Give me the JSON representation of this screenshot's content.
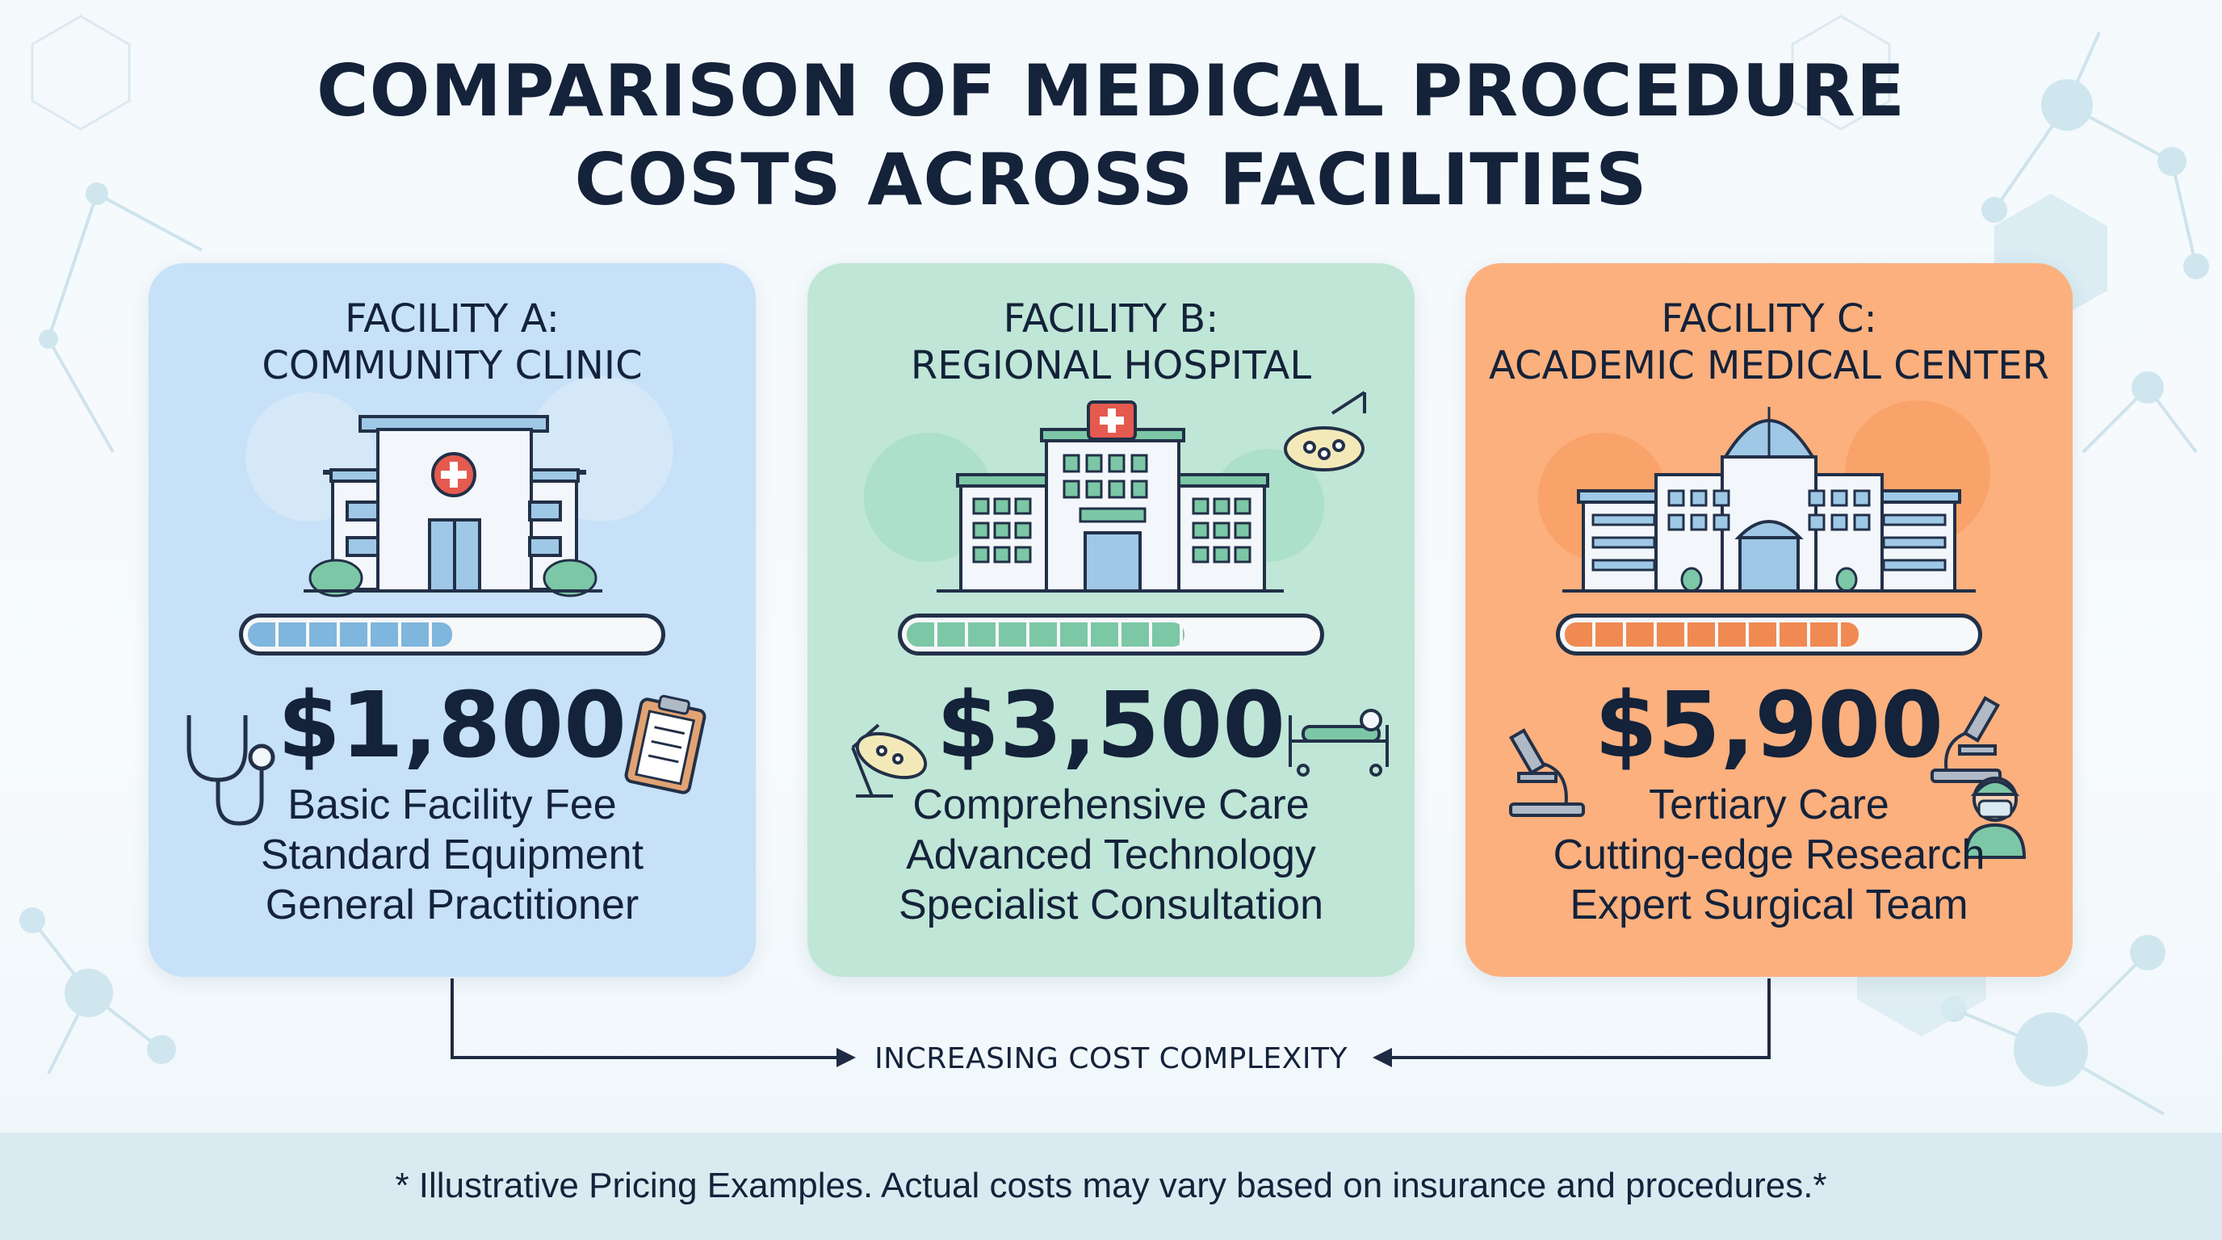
{
  "title": {
    "line1": "COMPARISON OF MEDICAL PROCEDURE",
    "line2": "COSTS ACROSS FACILITIES"
  },
  "facilities": [
    {
      "heading_line1": "FACILITY A:",
      "heading_line2": "COMMUNITY CLINIC",
      "cost_level": 0.5,
      "price": "$1,800",
      "features": [
        "Basic Facility Fee",
        "Standard Equipment",
        "General Practitioner"
      ],
      "color": "#c6e1f8",
      "accent": "#7fb6dd",
      "icons": [
        "clinic-building-icon",
        "stethoscope-icon",
        "clipboard-icon"
      ]
    },
    {
      "heading_line1": "FACILITY B:",
      "heading_line2": "REGIONAL HOSPITAL",
      "cost_level": 0.68,
      "price": "$3,500",
      "features": [
        "Comprehensive Care",
        "Advanced Technology",
        "Specialist Consultation"
      ],
      "color": "#bfe6d6",
      "accent": "#7cc7a6",
      "icons": [
        "hospital-building-icon",
        "surgical-lamp-icon",
        "hospital-bed-icon"
      ]
    },
    {
      "heading_line1": "FACILITY C:",
      "heading_line2": "ACADEMIC MEDICAL CENTER",
      "cost_level": 0.72,
      "price": "$5,900",
      "features": [
        "Tertiary Care",
        "Cutting-edge Research",
        "Expert Surgical Team"
      ],
      "color": "#fbb07e",
      "accent": "#f08a52",
      "icons": [
        "medical-center-building-icon",
        "microscope-icon",
        "surgeon-icon"
      ]
    }
  ],
  "arrow_label": "INCREASING COST COMPLEXITY",
  "footer": "* Illustrative Pricing Examples. Actual costs may vary based on insurance and procedures.*"
}
